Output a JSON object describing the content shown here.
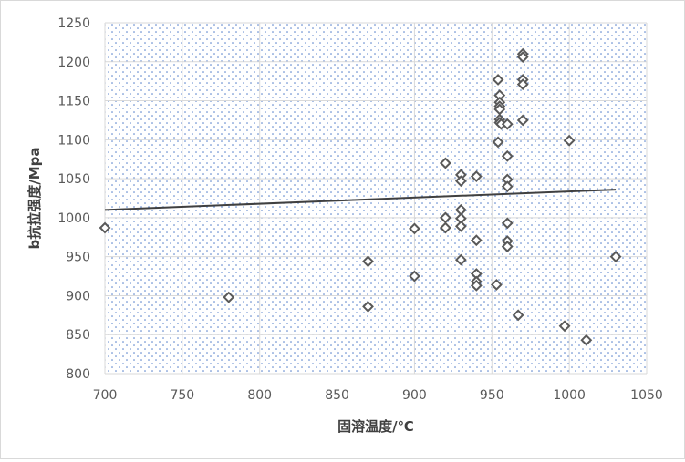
{
  "chart_data": {
    "type": "scatter",
    "xlabel": "固溶温度/℃",
    "ylabel": "b抗拉强度/Mpa",
    "xlim": [
      700,
      1050
    ],
    "ylim": [
      800,
      1250
    ],
    "x_ticks": [
      700,
      750,
      800,
      850,
      900,
      950,
      1000,
      1050
    ],
    "y_ticks": [
      800,
      850,
      900,
      950,
      1000,
      1050,
      1100,
      1150,
      1200,
      1250
    ],
    "x_tick_labels": [
      "700",
      "750",
      "800",
      "850",
      "900",
      "950",
      "1000",
      "1050"
    ],
    "y_tick_labels": [
      "800",
      "850",
      "900",
      "950",
      "1000",
      "1050",
      "1100",
      "1150",
      "1200",
      "1250"
    ],
    "grid": true,
    "plot_background": "dotted",
    "marker": "hollow-diamond",
    "colors": {
      "marker": "#595959",
      "trendline": "#404040",
      "grid": "#d9d9d9",
      "dots": "#4472c4"
    },
    "series": [
      {
        "x": [
          700,
          780,
          870,
          870,
          900,
          900,
          920,
          920,
          920,
          930,
          930,
          930,
          930,
          930,
          930,
          940,
          940,
          940,
          940,
          940,
          953,
          954,
          954,
          955,
          955,
          955,
          955,
          955,
          955,
          956,
          960,
          960,
          960,
          960,
          960,
          960,
          960,
          967,
          970,
          970,
          970,
          970,
          970,
          997,
          1000,
          1011,
          1030
        ],
        "y": [
          987,
          898,
          886,
          944,
          925,
          986,
          1070,
          1000,
          987,
          1055,
          1047,
          1010,
          999,
          989,
          946,
          1053,
          971,
          928,
          918,
          913,
          914,
          1177,
          1097,
          1157,
          1148,
          1143,
          1139,
          1126,
          1122,
          1120,
          1079,
          1049,
          1040,
          993,
          970,
          963,
          1120,
          875,
          1210,
          1206,
          1177,
          1171,
          1125,
          861,
          1099,
          843,
          950
        ]
      }
    ],
    "trendline": {
      "type": "linear",
      "x": [
        700,
        1030
      ],
      "y": [
        1010,
        1036
      ]
    }
  }
}
